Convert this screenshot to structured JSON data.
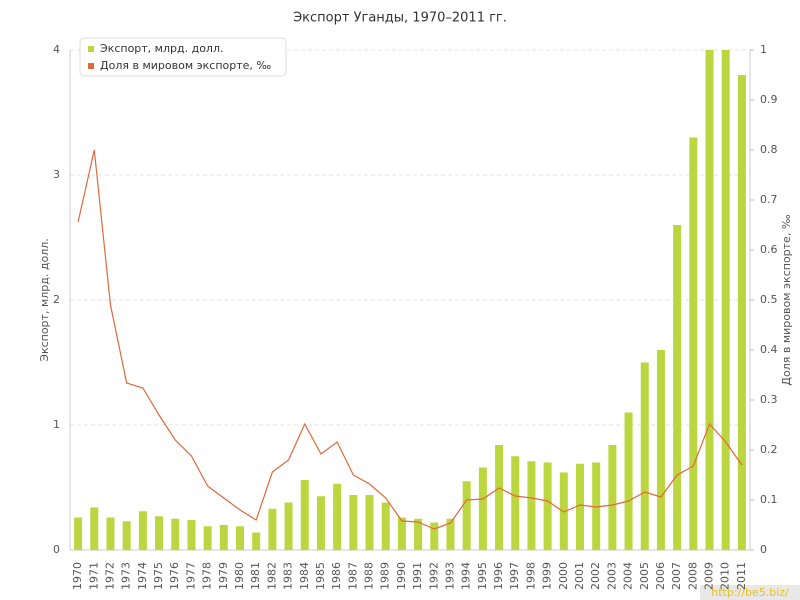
{
  "chart_data": {
    "type": "bar_line",
    "title": "Экспорт Уганды, 1970–2011 гг.",
    "y_label": "Экспорт, млрд. долл.",
    "y2_label": "Доля в мировом экспорте, ‰",
    "watermark": "http://be5.biz/",
    "legend": "top-left",
    "grid": true,
    "categories": [
      "1970",
      "1971",
      "1972",
      "1973",
      "1974",
      "1975",
      "1976",
      "1977",
      "1978",
      "1979",
      "1980",
      "1981",
      "1982",
      "1983",
      "1984",
      "1985",
      "1986",
      "1987",
      "1988",
      "1989",
      "1990",
      "1991",
      "1992",
      "1993",
      "1994",
      "1995",
      "1996",
      "1997",
      "1998",
      "1999",
      "2000",
      "2001",
      "2002",
      "2003",
      "2004",
      "2005",
      "2006",
      "2007",
      "2008",
      "2009",
      "2010",
      "2011"
    ],
    "series": [
      {
        "name": "Экспорт, млрд. долл.",
        "type": "bar",
        "color": "#bcd640",
        "values": [
          0.26,
          0.34,
          0.26,
          0.23,
          0.31,
          0.27,
          0.25,
          0.24,
          0.19,
          0.2,
          0.19,
          0.14,
          0.33,
          0.38,
          0.56,
          0.43,
          0.53,
          0.44,
          0.44,
          0.38,
          0.26,
          0.25,
          0.22,
          0.25,
          0.55,
          0.66,
          0.84,
          0.75,
          0.71,
          0.7,
          0.62,
          0.69,
          0.7,
          0.84,
          1.1,
          1.5,
          1.6,
          2.6,
          3.3,
          4.0,
          4.0,
          3.8
        ]
      },
      {
        "name": "Доля в мировом экспорте, ‰",
        "type": "line",
        "axis": "y2",
        "color": "#e0683a",
        "values": [
          0.656,
          0.8,
          0.49,
          0.334,
          0.324,
          0.27,
          0.22,
          0.188,
          0.128,
          0.104,
          0.08,
          0.06,
          0.156,
          0.18,
          0.252,
          0.192,
          0.216,
          0.15,
          0.132,
          0.104,
          0.058,
          0.056,
          0.042,
          0.054,
          0.1,
          0.102,
          0.124,
          0.108,
          0.104,
          0.098,
          0.076,
          0.09,
          0.086,
          0.09,
          0.098,
          0.116,
          0.106,
          0.15,
          0.168,
          0.252,
          0.216,
          0.17
        ]
      }
    ],
    "ylim": [
      0,
      4
    ],
    "yticks": [
      0,
      1,
      2,
      3,
      4
    ],
    "y2lim": [
      0,
      1
    ],
    "y2ticks": [
      0,
      0.1,
      0.2,
      0.3,
      0.4,
      0.5,
      0.6,
      0.7,
      0.8,
      0.9,
      1
    ]
  }
}
